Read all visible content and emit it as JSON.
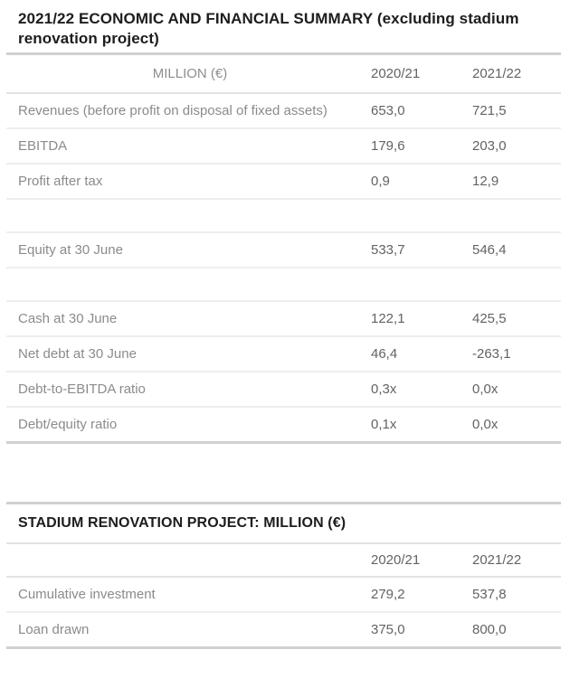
{
  "page": {
    "title": "2021/22 ECONOMIC AND FINANCIAL SUMMARY (excluding stadium renovation project)"
  },
  "summary_table": {
    "columns": [
      "MILLION (€)",
      "2020/21",
      "2021/22"
    ],
    "rows": [
      {
        "label": "Revenues (before profit on disposal of fixed assets)",
        "fy2021": "653,0",
        "fy2022": "721,5"
      },
      {
        "label": "EBITDA",
        "fy2021": "179,6",
        "fy2022": "203,0"
      },
      {
        "label": "Profit after tax",
        "fy2021": "0,9",
        "fy2022": "12,9"
      },
      {
        "label": "",
        "fy2021": "",
        "fy2022": ""
      },
      {
        "label": "Equity at 30 June",
        "fy2021": "533,7",
        "fy2022": "546,4"
      },
      {
        "label": "",
        "fy2021": "",
        "fy2022": ""
      },
      {
        "label": "Cash at 30 June",
        "fy2021": "122,1",
        "fy2022": "425,5"
      },
      {
        "label": "Net debt at 30 June",
        "fy2021": "46,4",
        "fy2022": "-263,1"
      },
      {
        "label": "Debt-to-EBITDA ratio",
        "fy2021": "0,3x",
        "fy2022": "0,0x"
      },
      {
        "label": "Debt/equity ratio",
        "fy2021": "0,1x",
        "fy2022": "0,0x"
      }
    ]
  },
  "stadium_table": {
    "title": "STADIUM RENOVATION PROJECT: MILLION (€)",
    "columns": [
      "",
      "2020/21",
      "2021/22"
    ],
    "rows": [
      {
        "label": "Cumulative investment",
        "fy2021": "279,2",
        "fy2022": "537,8"
      },
      {
        "label": "Loan drawn",
        "fy2021": "375,0",
        "fy2022": "800,0"
      }
    ]
  },
  "colors": {
    "heading_text": "#1d1d1b",
    "column_header_text": "#434343",
    "label_text": "#8b8b8b",
    "value_text": "#636363",
    "row_divider": "#eeeeee",
    "header_divider": "#e2e2e2",
    "table_border": "#d0d0d0",
    "background": "#ffffff"
  }
}
